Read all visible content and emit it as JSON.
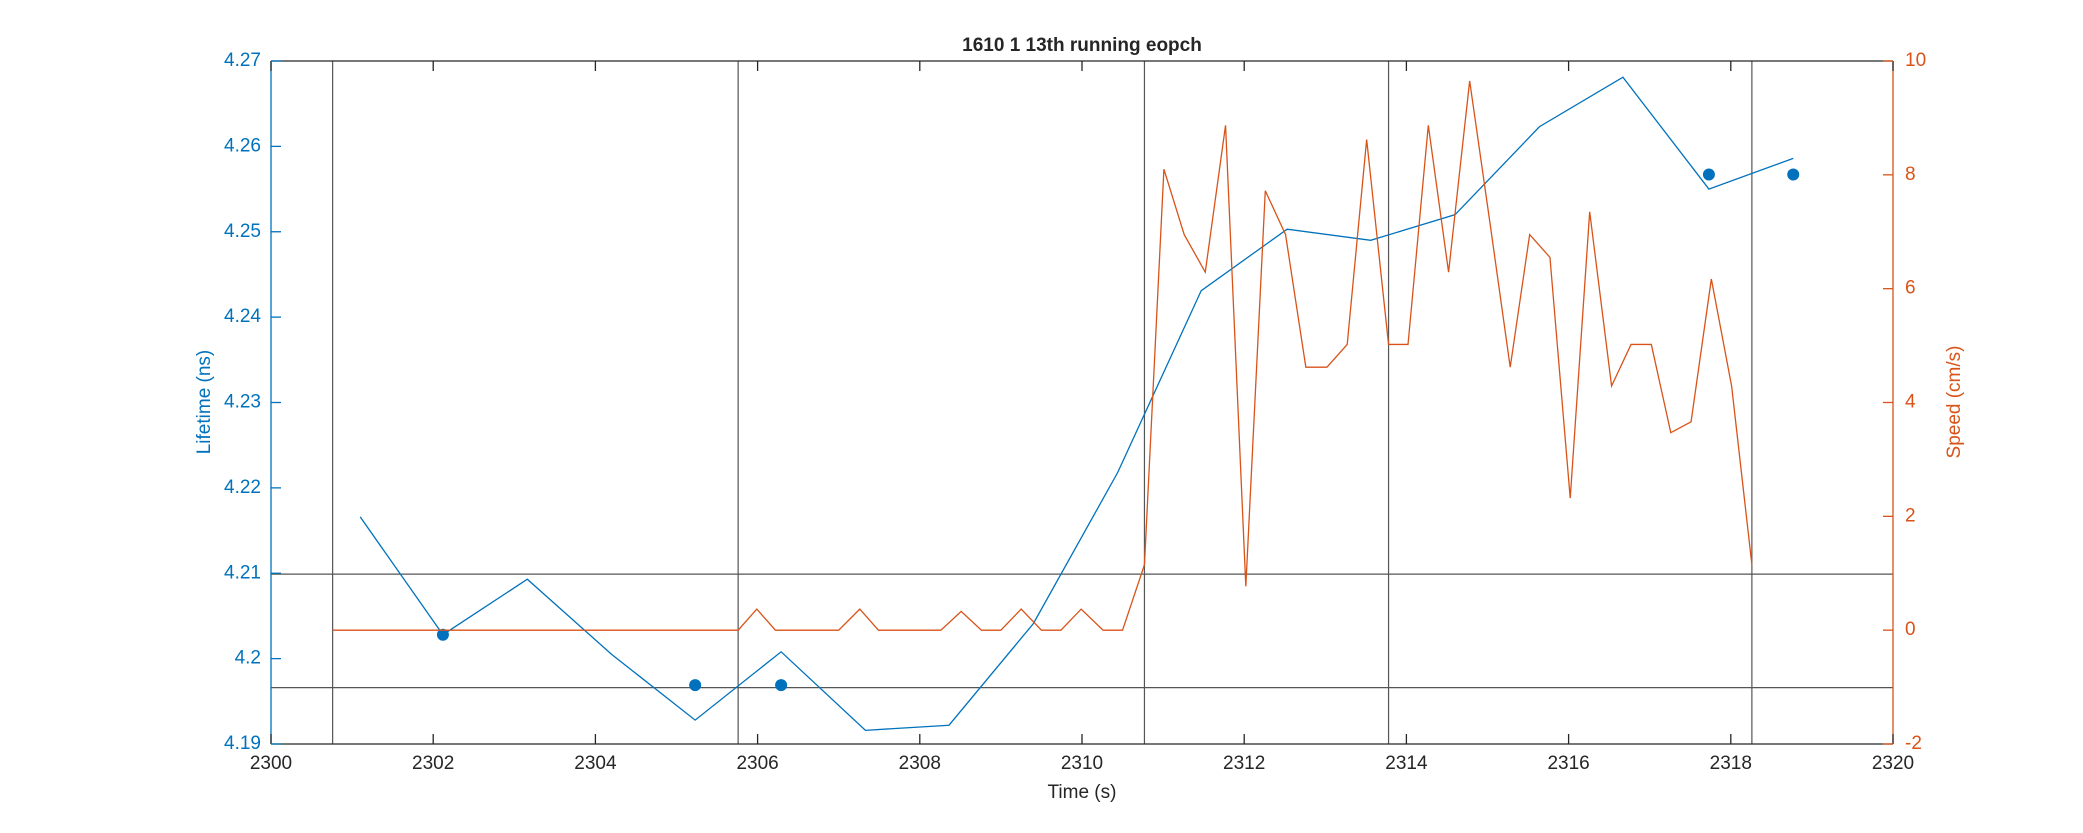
{
  "chart_data": {
    "type": "line",
    "title": "1610 1 13th running eopch",
    "x_label": "Time (s)",
    "y_label": "Lifetime (ns)",
    "y2_label": "Speed (cm/s)",
    "xlim": [
      2300,
      2320
    ],
    "xticks": [
      2300,
      2302,
      2304,
      2306,
      2308,
      2310,
      2312,
      2314,
      2316,
      2318,
      2320
    ],
    "ylim": [
      4.19,
      4.27
    ],
    "yticks": [
      4.19,
      4.2,
      4.21,
      4.22,
      4.23,
      4.24,
      4.25,
      4.26,
      4.27
    ],
    "y2lim": [
      -2,
      10
    ],
    "y2ticks": [
      -2,
      0,
      2,
      4,
      6,
      8,
      10
    ],
    "y_color": "#0072bd",
    "y2_color": "#d95319",
    "xlines": [
      2300.76,
      2305.76,
      2310.77,
      2313.78,
      2318.26
    ],
    "ylines": [
      4.2099,
      4.1966
    ],
    "series": [
      {
        "mode": "line",
        "color": "#0072bd",
        "x": [
          2301.1,
          2302.12,
          2303.16,
          2304.2,
          2305.23,
          2306.29,
          2307.33,
          2308.36,
          2309.4,
          2310.44,
          2311.47,
          2312.53,
          2313.56,
          2314.6,
          2315.64,
          2316.67,
          2317.73,
          2318.77
        ],
        "values": [
          4.2166,
          4.2028,
          4.2093,
          4.2005,
          4.1928,
          4.2008,
          4.1916,
          4.1922,
          4.2041,
          4.2218,
          4.2431,
          4.2503,
          4.249,
          4.252,
          4.2623,
          4.2681,
          4.255,
          4.2586
        ]
      },
      {
        "mode": "markers",
        "color": "#0072bd",
        "x": [
          2302.12,
          2305.23,
          2306.29,
          2317.73,
          2318.77
        ],
        "values": [
          4.2028,
          4.1969,
          4.1969,
          4.2567,
          4.2567
        ]
      },
      {
        "mode": "line",
        "color": "#d95319",
        "axis": "y2",
        "x": [
          2300.76,
          2305.76,
          2305.99,
          2306.22,
          2307.0,
          2307.26,
          2307.49,
          2308.26,
          2308.51,
          2308.76,
          2309.0,
          2309.25,
          2309.5,
          2309.74,
          2309.99,
          2310.26,
          2310.5,
          2310.77,
          2311.01,
          2311.26,
          2311.52,
          2311.77,
          2312.02,
          2312.26,
          2312.51,
          2312.76,
          2313.02,
          2313.27,
          2313.51,
          2313.78,
          2314.02,
          2314.27,
          2314.52,
          2314.78,
          2315.03,
          2315.28,
          2315.52,
          2315.77,
          2316.02,
          2316.26,
          2316.53,
          2316.77,
          2317.02,
          2317.26,
          2317.51,
          2317.76,
          2318.01,
          2318.26
        ],
        "values": [
          0,
          0,
          0.37,
          0,
          0,
          0.37,
          0,
          0,
          0.33,
          0,
          0,
          0.37,
          0,
          0,
          0.37,
          0,
          0,
          1.15,
          8.1,
          6.95,
          6.29,
          8.87,
          0.77,
          7.72,
          6.95,
          4.62,
          4.62,
          5.02,
          8.62,
          5.02,
          5.02,
          8.87,
          6.29,
          9.65,
          7.16,
          4.62,
          6.95,
          6.55,
          2.32,
          7.35,
          4.29,
          5.02,
          5.02,
          3.47,
          3.66,
          6.17,
          4.29,
          1.15
        ]
      }
    ]
  }
}
